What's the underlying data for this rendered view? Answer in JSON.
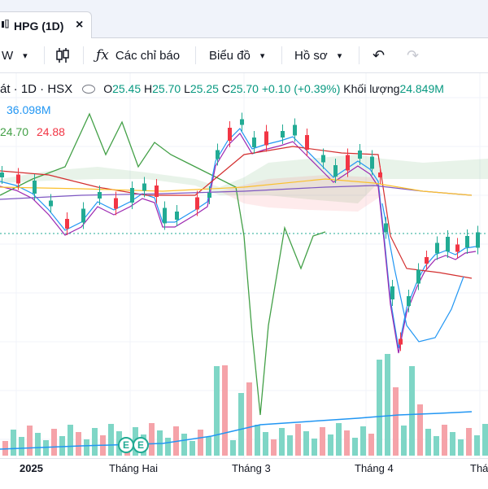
{
  "tab": {
    "title": "HPG (1D)",
    "close": "×"
  },
  "toolbar": {
    "interval": "W",
    "indicators": "Các chỉ báo",
    "chart_type": "Biểu đồ",
    "profile": "Hồ sơ",
    "undo": "↶",
    "redo": "↷"
  },
  "legend": {
    "symbol": "át · 1D · HSX",
    "o_label": "O",
    "o_val": "25.45",
    "h_label": "H",
    "h_val": "25.70",
    "l_label": "L",
    "l_val": "25.25",
    "c_label": "C",
    "c_val": "25.70",
    "change": "+0.10 (+0.39%)",
    "volume_label": "Khối lượng",
    "volume_val": "24.849M",
    "vol_ma": "36.098M",
    "ichimoku_a": "24.70",
    "ichimoku_b": "24.88"
  },
  "xaxis": {
    "l1": "2025",
    "l2": "Tháng Hai",
    "l3": "Tháng 3",
    "l4": "Tháng 4",
    "l5": "Thá"
  },
  "events": {
    "e1": "E",
    "e2": "E"
  },
  "colors": {
    "up": "#22ab94",
    "down": "#f23645",
    "vol_up": "#7fd6c6",
    "vol_down": "#f5a3a9",
    "accent": "#2962ff"
  }
}
